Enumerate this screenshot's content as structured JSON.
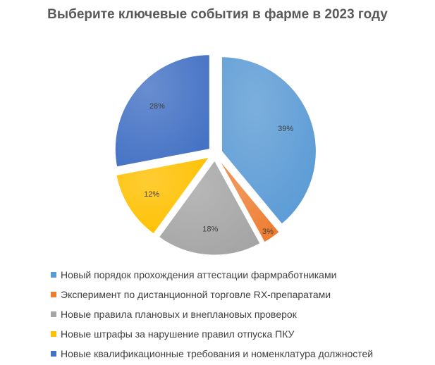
{
  "chart_data": {
    "type": "pie",
    "title": "Выберите ключевые события в фарме в 2023 году",
    "legend_position": "bottom-left",
    "slices": [
      {
        "label": "Новый порядок прохождения аттестации фармработниками",
        "value": 39,
        "display": "39%",
        "color": "#5B9BD5"
      },
      {
        "label": "Эксперимент по дистанционной торговле RX-препаратами",
        "value": 3,
        "display": "3%",
        "color": "#ED7D31"
      },
      {
        "label": "Новые правила плановых и внеплановых проверок",
        "value": 18,
        "display": "18%",
        "color": "#A5A5A5"
      },
      {
        "label": "Новые штрафы за нарушение правил отпуска ПКУ",
        "value": 12,
        "display": "12%",
        "color": "#FFC000"
      },
      {
        "label": "Новые квалификационные требования и номенклатура должностей",
        "value": 28,
        "display": "28%",
        "color": "#4472C4"
      }
    ]
  }
}
